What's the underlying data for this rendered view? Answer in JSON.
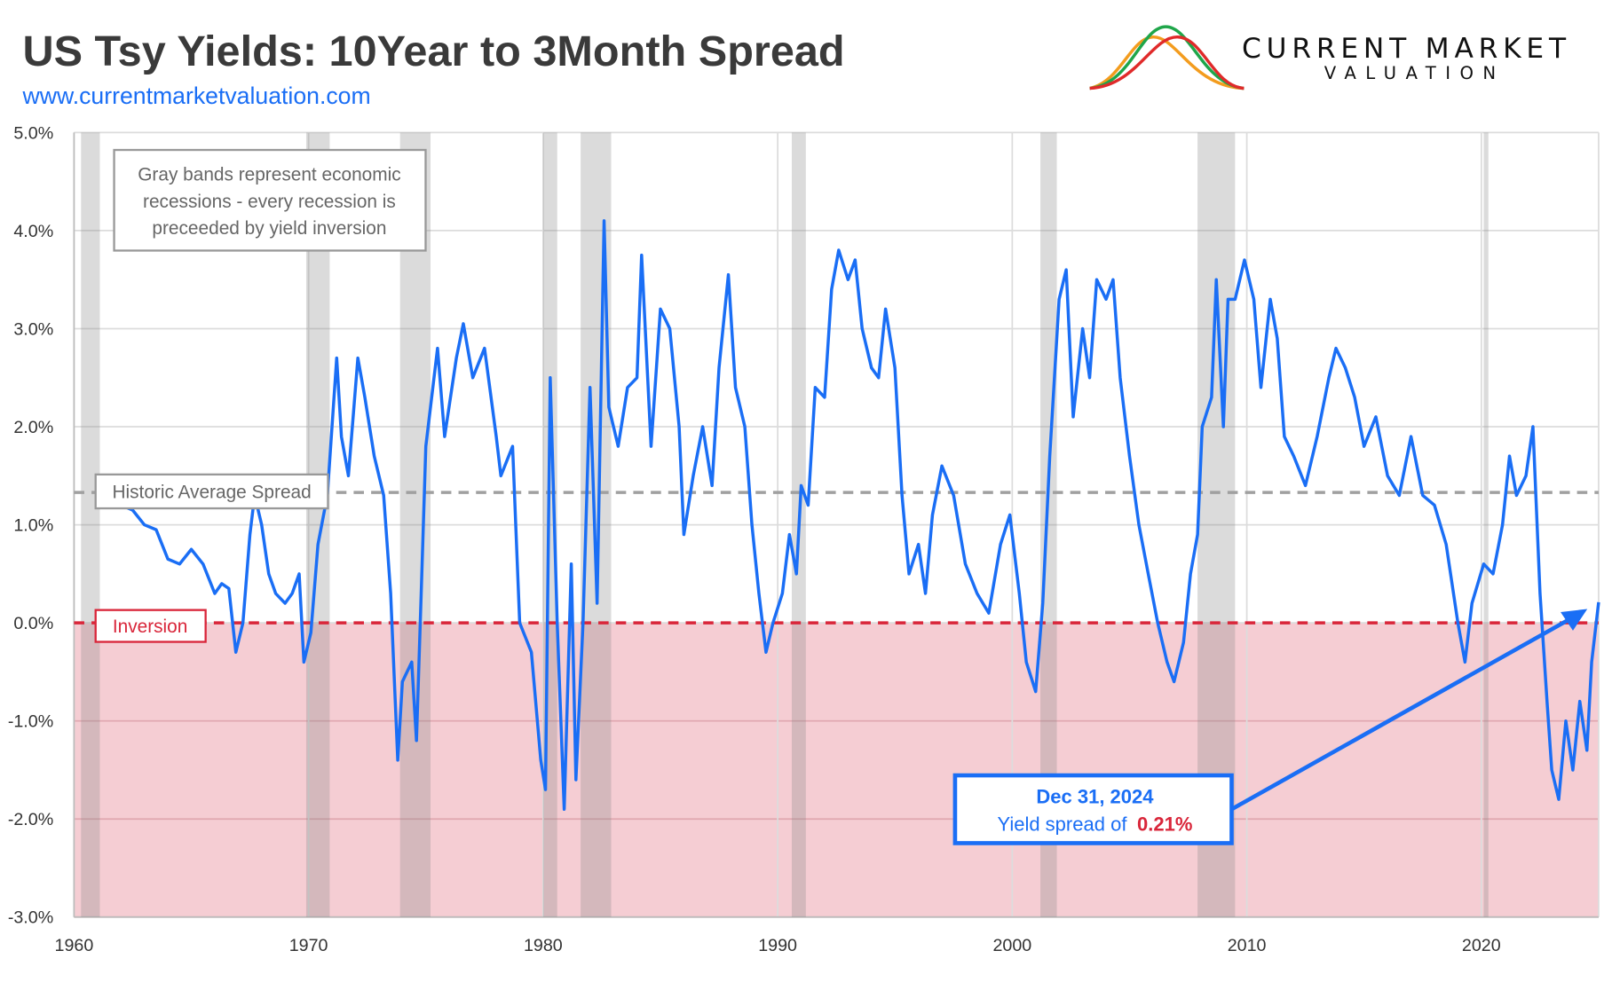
{
  "header": {
    "title": "US Tsy Yields: 10Year to 3Month Spread",
    "url": "www.currentmarketvaluation.com",
    "logo_line1": "CURRENT MARKET",
    "logo_line2": "VALUATION"
  },
  "colors": {
    "series": "#1a6ef5",
    "inversion": "#d9263a",
    "inversion_fill": "#f5cdd3",
    "recession": "#d8d8d8",
    "average": "#a0a0a0"
  },
  "chart_data": {
    "type": "line",
    "title": "US Tsy Yields: 10Year to 3Month Spread",
    "xlim": [
      1960,
      2025
    ],
    "ylim": [
      -3.0,
      5.0
    ],
    "x_ticks": [
      "1960",
      "1970",
      "1980",
      "1990",
      "2000",
      "2010",
      "2020"
    ],
    "y_ticks": [
      "5.0%",
      "4.0%",
      "3.0%",
      "2.0%",
      "1.0%",
      "0.0%",
      "-1.0%",
      "-2.0%",
      "-3.0%"
    ],
    "grid": true,
    "historic_average": 1.33,
    "historic_average_label": "Historic Average Spread",
    "inversion_level": 0.0,
    "inversion_label": "Inversion",
    "note": "Gray bands represent economic recessions - every recession is preceeded by yield inversion",
    "note_lines": [
      "Gray bands represent economic",
      "recessions - every recession is",
      "preceeded by yield inversion"
    ],
    "callout": {
      "date": "Dec 31, 2024",
      "prefix": "Yield spread of",
      "value": "0.21%"
    },
    "recessions": [
      [
        1960.3,
        1961.1
      ],
      [
        1969.9,
        1970.9
      ],
      [
        1973.9,
        1975.2
      ],
      [
        1980.0,
        1980.6
      ],
      [
        1981.6,
        1982.9
      ],
      [
        1990.6,
        1991.2
      ],
      [
        2001.2,
        2001.9
      ],
      [
        2007.9,
        2009.5
      ],
      [
        2020.1,
        2020.3
      ]
    ],
    "series": [
      {
        "x": [
          1962.0,
          1962.5,
          1963,
          1963.5,
          1964,
          1964.5,
          1965,
          1965.5,
          1966,
          1966.3,
          1966.6,
          1966.9,
          1967.2,
          1967.5,
          1967.7,
          1968,
          1968.3,
          1968.6,
          1969,
          1969.3,
          1969.6,
          1969.8,
          1970.1,
          1970.4,
          1970.8,
          1971.2,
          1971.4,
          1971.7,
          1972.1,
          1972.4,
          1972.8,
          1973.2,
          1973.5,
          1973.8,
          1974,
          1974.4,
          1974.6,
          1974.8,
          1975,
          1975.5,
          1975.8,
          1976.3,
          1976.6,
          1977,
          1977.5,
          1978,
          1978.2,
          1978.7,
          1979,
          1979.5,
          1979.9,
          1980.1,
          1980.3,
          1980.6,
          1980.9,
          1981.2,
          1981.4,
          1981.7,
          1982,
          1982.3,
          1982.6,
          1982.8,
          1983.2,
          1983.6,
          1984,
          1984.2,
          1984.6,
          1985,
          1985.4,
          1985.8,
          1986,
          1986.4,
          1986.8,
          1987.2,
          1987.5,
          1987.9,
          1988.2,
          1988.6,
          1988.9,
          1989.2,
          1989.5,
          1989.8,
          1990.2,
          1990.5,
          1990.8,
          1991,
          1991.3,
          1991.6,
          1992,
          1992.3,
          1992.6,
          1993,
          1993.3,
          1993.6,
          1994,
          1994.3,
          1994.6,
          1995,
          1995.3,
          1995.6,
          1996,
          1996.3,
          1996.6,
          1997,
          1997.5,
          1998,
          1998.5,
          1999,
          1999.5,
          1999.9,
          2000.3,
          2000.6,
          2001,
          2001.3,
          2001.6,
          2002,
          2002.3,
          2002.6,
          2003,
          2003.3,
          2003.6,
          2004,
          2004.3,
          2004.6,
          2005,
          2005.4,
          2005.8,
          2006.2,
          2006.6,
          2006.9,
          2007.3,
          2007.6,
          2007.9,
          2008.1,
          2008.5,
          2008.7,
          2009,
          2009.2,
          2009.5,
          2009.9,
          2010.3,
          2010.6,
          2011,
          2011.3,
          2011.6,
          2012,
          2012.5,
          2013,
          2013.5,
          2013.8,
          2014.2,
          2014.6,
          2015,
          2015.5,
          2016,
          2016.5,
          2017,
          2017.5,
          2018,
          2018.5,
          2019,
          2019.3,
          2019.6,
          2020.1,
          2020.5,
          2020.9,
          2021.2,
          2021.5,
          2021.9,
          2022.2,
          2022.5,
          2022.8,
          2023,
          2023.3,
          2023.6,
          2023.9,
          2024.2,
          2024.5,
          2024.7,
          2025.0
        ],
        "y": [
          1.2,
          1.15,
          1.0,
          0.95,
          0.65,
          0.6,
          0.75,
          0.6,
          0.3,
          0.4,
          0.35,
          -0.3,
          0.0,
          0.9,
          1.3,
          1.0,
          0.5,
          0.3,
          0.2,
          0.3,
          0.5,
          -0.4,
          -0.1,
          0.8,
          1.3,
          2.7,
          1.9,
          1.5,
          2.7,
          2.3,
          1.7,
          1.3,
          0.3,
          -1.4,
          -0.6,
          -0.4,
          -1.2,
          0.3,
          1.8,
          2.8,
          1.9,
          2.7,
          3.05,
          2.5,
          2.8,
          1.9,
          1.5,
          1.8,
          0.0,
          -0.3,
          -1.4,
          -1.7,
          2.5,
          0.0,
          -1.9,
          0.6,
          -1.6,
          0.0,
          2.4,
          0.2,
          4.1,
          2.2,
          1.8,
          2.4,
          2.5,
          3.75,
          1.8,
          3.2,
          3.0,
          2.0,
          0.9,
          1.5,
          2.0,
          1.4,
          2.6,
          3.55,
          2.4,
          2.0,
          1.0,
          0.3,
          -0.3,
          0.0,
          0.3,
          0.9,
          0.5,
          1.4,
          1.2,
          2.4,
          2.3,
          3.4,
          3.8,
          3.5,
          3.7,
          3.0,
          2.6,
          2.5,
          3.2,
          2.6,
          1.3,
          0.5,
          0.8,
          0.3,
          1.1,
          1.6,
          1.3,
          0.6,
          0.3,
          0.1,
          0.8,
          1.1,
          0.3,
          -0.4,
          -0.7,
          0.2,
          1.7,
          3.3,
          3.6,
          2.1,
          3.0,
          2.5,
          3.5,
          3.3,
          3.5,
          2.5,
          1.7,
          1.0,
          0.5,
          0.0,
          -0.4,
          -0.6,
          -0.2,
          0.5,
          0.9,
          2.0,
          2.3,
          3.5,
          2.0,
          3.3,
          3.3,
          3.7,
          3.3,
          2.4,
          3.3,
          2.9,
          1.9,
          1.7,
          1.4,
          1.9,
          2.5,
          2.8,
          2.6,
          2.3,
          1.8,
          2.1,
          1.5,
          1.3,
          1.9,
          1.3,
          1.2,
          0.8,
          0.0,
          -0.4,
          0.2,
          0.6,
          0.5,
          1.0,
          1.7,
          1.3,
          1.5,
          2.0,
          0.3,
          -0.8,
          -1.5,
          -1.8,
          -1.0,
          -1.5,
          -0.8,
          -1.3,
          -0.4,
          0.21
        ]
      }
    ]
  }
}
